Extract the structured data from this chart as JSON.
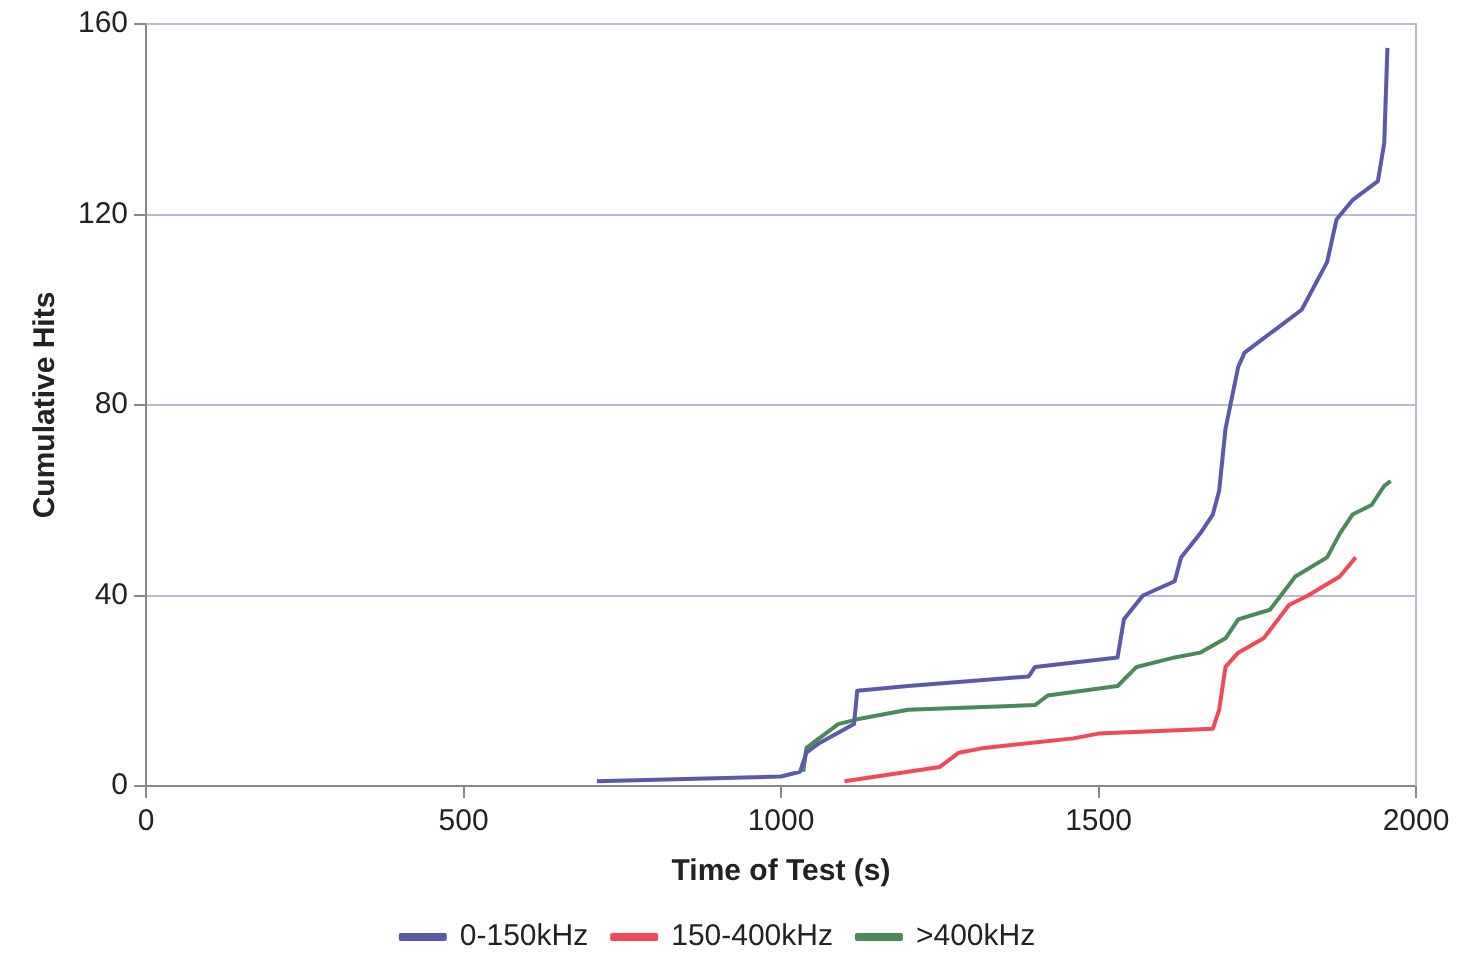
{
  "chart_data": {
    "type": "line",
    "xlabel": "Time of Test (s)",
    "ylabel": "Cumulative Hits",
    "xlim": [
      0,
      2000
    ],
    "xticks": [
      0,
      500,
      1000,
      1500,
      2000
    ],
    "ylim": [
      0,
      160
    ],
    "yticks": [
      0,
      40,
      80,
      120,
      160
    ],
    "grid": "y",
    "legend": "bottom",
    "marker": "none",
    "line_style": "solid",
    "series": [
      {
        "name": "0-150kHz",
        "color": "#5a5aa8",
        "x": [
          710,
          1000,
          1030,
          1040,
          1060,
          1115,
          1120,
          1200,
          1390,
          1400,
          1530,
          1540,
          1570,
          1620,
          1630,
          1660,
          1680,
          1690,
          1700,
          1720,
          1730,
          1780,
          1820,
          1860,
          1875,
          1900,
          1940,
          1950,
          1955
        ],
        "values": [
          1,
          2,
          3,
          7,
          9,
          13,
          20,
          21,
          23,
          25,
          27,
          35,
          40,
          43,
          48,
          53,
          57,
          62,
          75,
          88,
          91,
          96,
          100,
          110,
          119,
          123,
          127,
          135,
          155
        ]
      },
      {
        "name": "150-400kHz",
        "color": "#f04a5a",
        "x": [
          1100,
          1200,
          1250,
          1280,
          1320,
          1460,
          1500,
          1680,
          1690,
          1700,
          1720,
          1760,
          1800,
          1830,
          1880,
          1905
        ],
        "values": [
          1,
          3,
          4,
          7,
          8,
          10,
          11,
          12,
          16,
          25,
          28,
          31,
          38,
          40,
          44,
          48
        ]
      },
      {
        "name": ">400kHz",
        "color": "#4a8a5a",
        "x": [
          1035,
          1040,
          1060,
          1090,
          1120,
          1200,
          1400,
          1420,
          1530,
          1560,
          1620,
          1660,
          1700,
          1720,
          1770,
          1810,
          1860,
          1880,
          1900,
          1930,
          1950,
          1960
        ],
        "values": [
          3,
          8,
          10,
          13,
          14,
          16,
          17,
          19,
          21,
          25,
          27,
          28,
          31,
          35,
          37,
          44,
          48,
          53,
          57,
          59,
          63,
          64
        ]
      }
    ]
  }
}
